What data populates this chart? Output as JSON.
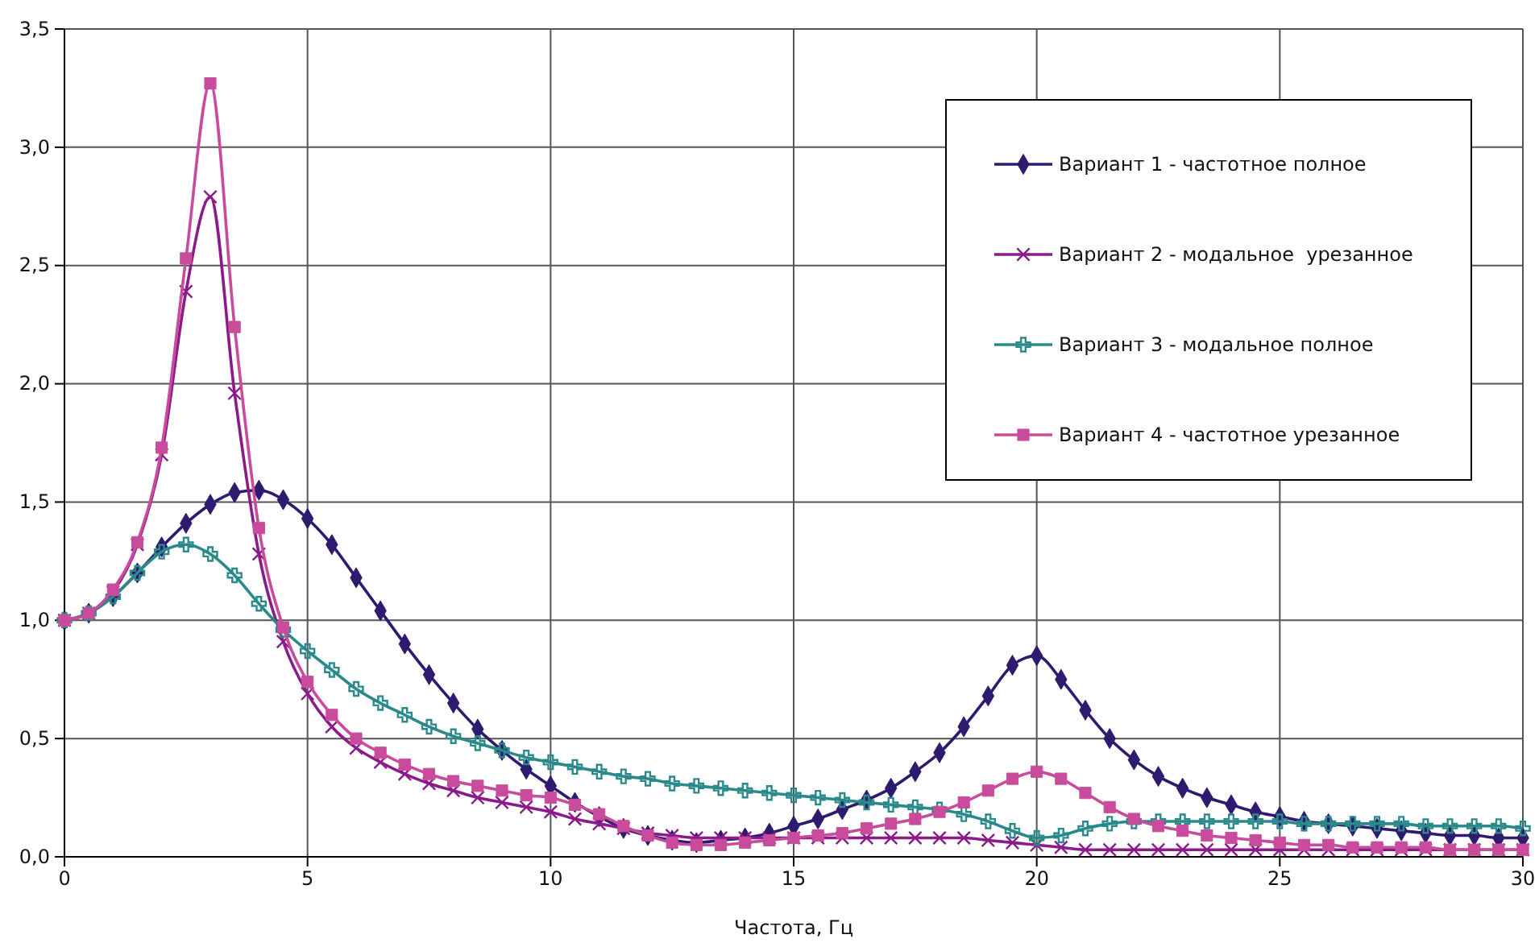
{
  "chart_data": {
    "type": "line",
    "xlabel": "Частота, Гц",
    "x": [
      0,
      0.5,
      1,
      1.5,
      2,
      2.5,
      3,
      3.5,
      4,
      4.5,
      5,
      5.5,
      6,
      6.5,
      7,
      7.5,
      8,
      8.5,
      9,
      9.5,
      10,
      10.5,
      11,
      11.5,
      12,
      12.5,
      13,
      13.5,
      14,
      14.5,
      15,
      15.5,
      16,
      16.5,
      17,
      17.5,
      18,
      18.5,
      19,
      19.5,
      20,
      20.5,
      21,
      21.5,
      22,
      22.5,
      23,
      23.5,
      24,
      24.5,
      25,
      25.5,
      26,
      26.5,
      27,
      27.5,
      28,
      28.5,
      29,
      29.5,
      30
    ],
    "series": [
      {
        "name": "Вариант 1 - частотное полное",
        "color": "#2e1a6e",
        "marker": "diamond",
        "values": [
          1.0,
          1.03,
          1.1,
          1.2,
          1.31,
          1.41,
          1.49,
          1.54,
          1.55,
          1.51,
          1.43,
          1.32,
          1.18,
          1.04,
          0.9,
          0.77,
          0.65,
          0.54,
          0.45,
          0.37,
          0.3,
          0.23,
          0.17,
          0.12,
          0.09,
          0.07,
          0.06,
          0.07,
          0.08,
          0.1,
          0.13,
          0.16,
          0.2,
          0.24,
          0.29,
          0.36,
          0.44,
          0.55,
          0.68,
          0.81,
          0.85,
          0.75,
          0.62,
          0.5,
          0.41,
          0.34,
          0.29,
          0.25,
          0.22,
          0.19,
          0.17,
          0.15,
          0.14,
          0.13,
          0.12,
          0.11,
          0.1,
          0.09,
          0.09,
          0.08,
          0.08
        ]
      },
      {
        "name": "Вариант 2 - модальное  урезанное",
        "color": "#8b1a8b",
        "marker": "cross",
        "values": [
          1.0,
          1.03,
          1.12,
          1.32,
          1.7,
          2.39,
          2.79,
          1.96,
          1.28,
          0.91,
          0.69,
          0.55,
          0.46,
          0.4,
          0.35,
          0.31,
          0.28,
          0.25,
          0.23,
          0.21,
          0.19,
          0.16,
          0.14,
          0.12,
          0.1,
          0.09,
          0.08,
          0.08,
          0.08,
          0.08,
          0.08,
          0.08,
          0.08,
          0.08,
          0.08,
          0.08,
          0.08,
          0.08,
          0.07,
          0.06,
          0.05,
          0.04,
          0.03,
          0.03,
          0.03,
          0.03,
          0.03,
          0.03,
          0.03,
          0.03,
          0.03,
          0.03,
          0.03,
          0.03,
          0.03,
          0.03,
          0.03,
          0.03,
          0.03,
          0.03,
          0.03
        ]
      },
      {
        "name": "Вариант 3 - модальное полное",
        "color": "#2a8a8a",
        "marker": "plus",
        "values": [
          1.0,
          1.03,
          1.1,
          1.2,
          1.29,
          1.32,
          1.28,
          1.19,
          1.07,
          0.96,
          0.87,
          0.79,
          0.71,
          0.65,
          0.6,
          0.55,
          0.51,
          0.48,
          0.45,
          0.42,
          0.4,
          0.38,
          0.36,
          0.34,
          0.33,
          0.31,
          0.3,
          0.29,
          0.28,
          0.27,
          0.26,
          0.25,
          0.24,
          0.23,
          0.22,
          0.21,
          0.2,
          0.18,
          0.15,
          0.11,
          0.08,
          0.09,
          0.12,
          0.14,
          0.15,
          0.15,
          0.15,
          0.15,
          0.15,
          0.15,
          0.15,
          0.14,
          0.14,
          0.14,
          0.14,
          0.14,
          0.13,
          0.13,
          0.13,
          0.13,
          0.12
        ]
      },
      {
        "name": "Вариант 4 - частотное урезанное",
        "color": "#c94c9c",
        "marker": "square",
        "values": [
          1.0,
          1.03,
          1.13,
          1.33,
          1.73,
          2.53,
          3.27,
          2.24,
          1.39,
          0.97,
          0.74,
          0.6,
          0.5,
          0.44,
          0.39,
          0.35,
          0.32,
          0.3,
          0.28,
          0.26,
          0.25,
          0.22,
          0.18,
          0.13,
          0.09,
          0.06,
          0.05,
          0.05,
          0.06,
          0.07,
          0.08,
          0.09,
          0.1,
          0.12,
          0.14,
          0.16,
          0.19,
          0.23,
          0.28,
          0.33,
          0.36,
          0.33,
          0.27,
          0.21,
          0.16,
          0.13,
          0.11,
          0.09,
          0.08,
          0.07,
          0.06,
          0.05,
          0.05,
          0.04,
          0.04,
          0.04,
          0.04,
          0.03,
          0.03,
          0.03,
          0.03
        ]
      }
    ],
    "xlim": [
      0,
      30
    ],
    "xticks": [
      0,
      5,
      10,
      15,
      20,
      25,
      30
    ],
    "ylim": [
      0,
      3.5
    ],
    "yticks": [
      {
        "value": 0,
        "label": "0,0"
      },
      {
        "value": 0.5,
        "label": "0,5"
      },
      {
        "value": 1,
        "label": "1,0"
      },
      {
        "value": 1.5,
        "label": "1,5"
      },
      {
        "value": 2,
        "label": "2,0"
      },
      {
        "value": 2.5,
        "label": "2,5"
      },
      {
        "value": 3,
        "label": "3,0"
      },
      {
        "value": 3.5,
        "label": "3,5"
      }
    ],
    "grid": true,
    "legend": "top right",
    "line_style": "solid"
  }
}
